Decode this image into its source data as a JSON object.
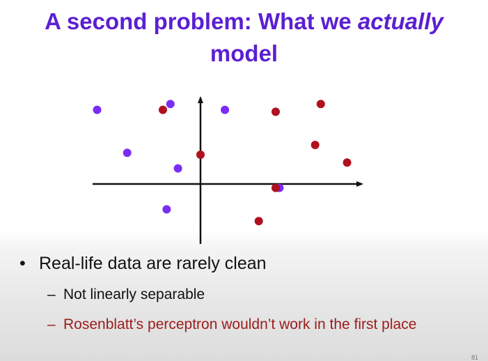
{
  "slide": {
    "title_pre": "A second problem: What we ",
    "title_em": "actually",
    "title_post": "model",
    "bullet_marker": "•",
    "dash_marker": "–",
    "bullet_main": "Real-life data are rarely clean",
    "sub_bullets": [
      "Not linearly separable",
      "Rosenblatt’s perceptron wouldn’t work in the first place"
    ],
    "page_number": "81"
  },
  "colors": {
    "title": "#5b1fd1",
    "class_a": "#7a2df5",
    "class_b": "#b0101f",
    "highlight_text": "#9b1b1b"
  },
  "chart_data": {
    "type": "scatter",
    "title": "",
    "xlabel": "",
    "ylabel": "",
    "xlim": [
      -5.7,
      8.8
    ],
    "ylim": [
      -3.3,
      4.6
    ],
    "series": [
      {
        "color": "#7a2df5",
        "points": [
          [
            -5.5,
            3.8
          ],
          [
            -1.6,
            4.1
          ],
          [
            1.3,
            3.8
          ],
          [
            -3.9,
            1.6
          ],
          [
            -1.2,
            0.8
          ],
          [
            4.2,
            -0.2
          ],
          [
            -1.8,
            -1.3
          ]
        ]
      },
      {
        "color": "#b0101f",
        "points": [
          [
            -2.0,
            3.8
          ],
          [
            4.0,
            3.7
          ],
          [
            6.4,
            4.1
          ],
          [
            6.1,
            2.0
          ],
          [
            7.8,
            1.1
          ],
          [
            0.0,
            1.5
          ],
          [
            4.0,
            -0.2
          ],
          [
            3.1,
            -1.9
          ]
        ]
      }
    ]
  }
}
